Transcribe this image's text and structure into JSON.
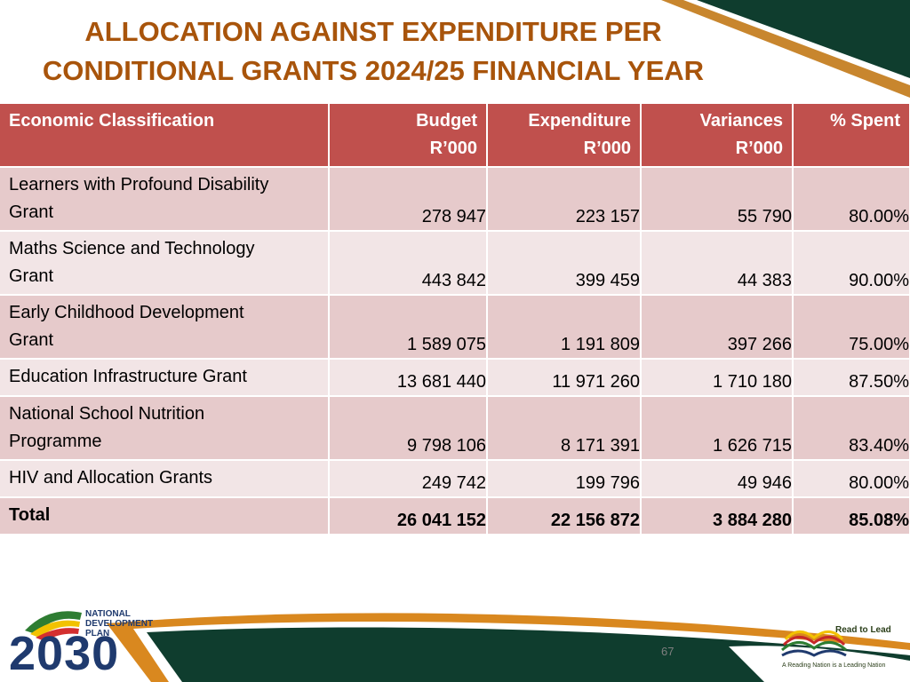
{
  "title_line1": "ALLOCATION AGAINST EXPENDITURE PER",
  "title_line2": "CONDITIONAL GRANTS 2024/25 FINANCIAL YEAR",
  "columns": {
    "c1": "Economic Classification",
    "c2a": "Budget",
    "c2b": "R’000",
    "c3a": "Expenditure",
    "c3b": "R’000",
    "c4a": "Variances",
    "c4b": "R’000",
    "c5": "% Spent"
  },
  "rows": [
    {
      "label_a": "Learners with Profound Disability",
      "label_b": "Grant",
      "budget": "278 947",
      "expenditure": "223 157",
      "variance": "55 790",
      "spent": "80.00%"
    },
    {
      "label_a": "Maths Science and Technology",
      "label_b": "Grant",
      "budget": "443 842",
      "expenditure": "399 459",
      "variance": "44 383",
      "spent": "90.00%"
    },
    {
      "label_a": "Early Childhood Development",
      "label_b": "Grant",
      "budget": "1 589 075",
      "expenditure": "1 191 809",
      "variance": "397 266",
      "spent": "75.00%"
    },
    {
      "label_a": "Education Infrastructure Grant",
      "label_b": "",
      "budget": "13 681 440",
      "expenditure": "11 971 260",
      "variance": "1 710 180",
      "spent": "87.50%"
    },
    {
      "label_a": "National School Nutrition",
      "label_b": "Programme",
      "budget": "9 798 106",
      "expenditure": "8 171 391",
      "variance": "1 626 715",
      "spent": "83.40%"
    },
    {
      "label_a": "HIV and Allocation Grants",
      "label_b": "",
      "budget": "249 742",
      "expenditure": "199 796",
      "variance": "49 946",
      "spent": "80.00%"
    }
  ],
  "total": {
    "label": "Total",
    "budget": "26 041 152",
    "expenditure": "22 156 872",
    "variance": "3 884 280",
    "spent": "85.08%"
  },
  "footer": {
    "ndp_line1": "NATIONAL",
    "ndp_line2": "DEVELOPMENT",
    "ndp_line3": "PLAN",
    "ndp_year": "2030",
    "page_number": "67",
    "rtl_title": "Read to Lead",
    "rtl_tagline": "A Reading Nation is a Leading Nation"
  },
  "colors": {
    "header": "#c0504d",
    "title": "#a8540b",
    "band_green": "#0f3d2e",
    "band_orange": "#d9881f"
  }
}
